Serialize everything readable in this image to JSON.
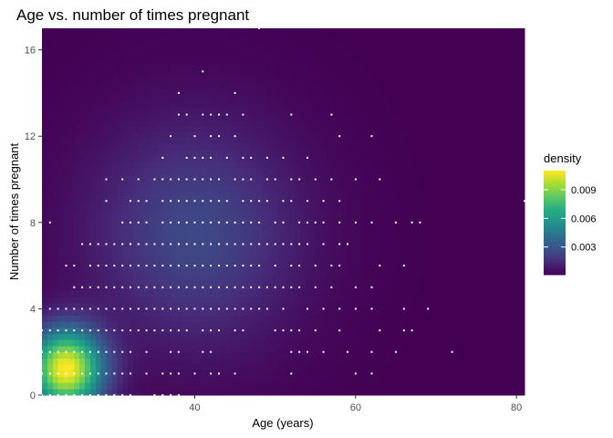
{
  "chart_data": {
    "type": "heatmap",
    "title": "Age vs. number of times pregnant",
    "xlabel": "Age (years)",
    "ylabel": "Number of times pregnant",
    "xlim": [
      21,
      81
    ],
    "ylim": [
      0,
      17
    ],
    "x_ticks": [
      40,
      60,
      80
    ],
    "y_ticks": [
      0,
      4,
      8,
      12,
      16
    ],
    "colormap": "viridis",
    "density_range": [
      0.0001,
      0.011
    ],
    "legend": {
      "title": "density",
      "placement": "right",
      "ticks": [
        {
          "value": 0.003,
          "label": "0.003"
        },
        {
          "value": 0.006,
          "label": "0.006"
        },
        {
          "value": 0.009,
          "label": "0.009"
        }
      ]
    },
    "density_peaks": [
      {
        "x": 24,
        "y": 1.2,
        "weight": 1.0
      },
      {
        "x": 40,
        "y": 7.5,
        "weight": 0.22
      }
    ],
    "points_color": "#ffffff",
    "points": [
      [
        21,
        0
      ],
      [
        22,
        0
      ],
      [
        23,
        0
      ],
      [
        24,
        0
      ],
      [
        25,
        0
      ],
      [
        26,
        0
      ],
      [
        27,
        0
      ],
      [
        28,
        0
      ],
      [
        29,
        0
      ],
      [
        30,
        0
      ],
      [
        31,
        0
      ],
      [
        32,
        0
      ],
      [
        35,
        0
      ],
      [
        36,
        0
      ],
      [
        37,
        0
      ],
      [
        38,
        0
      ],
      [
        21,
        1
      ],
      [
        22,
        1
      ],
      [
        23,
        1
      ],
      [
        24,
        1
      ],
      [
        25,
        1
      ],
      [
        26,
        1
      ],
      [
        27,
        1
      ],
      [
        28,
        1
      ],
      [
        29,
        1
      ],
      [
        30,
        1
      ],
      [
        31,
        1
      ],
      [
        32,
        1
      ],
      [
        34,
        1
      ],
      [
        36,
        1
      ],
      [
        37,
        1
      ],
      [
        38,
        1
      ],
      [
        40,
        1
      ],
      [
        42,
        1
      ],
      [
        43,
        1
      ],
      [
        45,
        1
      ],
      [
        52,
        1
      ],
      [
        60,
        1
      ],
      [
        62,
        1
      ],
      [
        21,
        2
      ],
      [
        22,
        2
      ],
      [
        23,
        2
      ],
      [
        24,
        2
      ],
      [
        25,
        2
      ],
      [
        26,
        2
      ],
      [
        27,
        2
      ],
      [
        28,
        2
      ],
      [
        29,
        2
      ],
      [
        30,
        2
      ],
      [
        31,
        2
      ],
      [
        32,
        2
      ],
      [
        34,
        2
      ],
      [
        37,
        2
      ],
      [
        38,
        2
      ],
      [
        41,
        2
      ],
      [
        42,
        2
      ],
      [
        52,
        2
      ],
      [
        53,
        2
      ],
      [
        54,
        2
      ],
      [
        56,
        2
      ],
      [
        59,
        2
      ],
      [
        62,
        2
      ],
      [
        65,
        2
      ],
      [
        72,
        2
      ],
      [
        21,
        3
      ],
      [
        22,
        3
      ],
      [
        23,
        3
      ],
      [
        24,
        3
      ],
      [
        25,
        3
      ],
      [
        26,
        3
      ],
      [
        27,
        3
      ],
      [
        28,
        3
      ],
      [
        29,
        3
      ],
      [
        30,
        3
      ],
      [
        31,
        3
      ],
      [
        32,
        3
      ],
      [
        33,
        3
      ],
      [
        34,
        3
      ],
      [
        35,
        3
      ],
      [
        36,
        3
      ],
      [
        37,
        3
      ],
      [
        38,
        3
      ],
      [
        39,
        3
      ],
      [
        41,
        3
      ],
      [
        42,
        3
      ],
      [
        43,
        3
      ],
      [
        45,
        3
      ],
      [
        46,
        3
      ],
      [
        50,
        3
      ],
      [
        51,
        3
      ],
      [
        52,
        3
      ],
      [
        53,
        3
      ],
      [
        55,
        3
      ],
      [
        58,
        3
      ],
      [
        63,
        3
      ],
      [
        66,
        3
      ],
      [
        67,
        3
      ],
      [
        22,
        4
      ],
      [
        23,
        4
      ],
      [
        24,
        4
      ],
      [
        25,
        4
      ],
      [
        26,
        4
      ],
      [
        27,
        4
      ],
      [
        28,
        4
      ],
      [
        29,
        4
      ],
      [
        30,
        4
      ],
      [
        31,
        4
      ],
      [
        32,
        4
      ],
      [
        33,
        4
      ],
      [
        34,
        4
      ],
      [
        35,
        4
      ],
      [
        36,
        4
      ],
      [
        37,
        4
      ],
      [
        38,
        4
      ],
      [
        39,
        4
      ],
      [
        40,
        4
      ],
      [
        41,
        4
      ],
      [
        42,
        4
      ],
      [
        43,
        4
      ],
      [
        44,
        4
      ],
      [
        45,
        4
      ],
      [
        46,
        4
      ],
      [
        47,
        4
      ],
      [
        48,
        4
      ],
      [
        49,
        4
      ],
      [
        51,
        4
      ],
      [
        54,
        4
      ],
      [
        56,
        4
      ],
      [
        58,
        4
      ],
      [
        60,
        4
      ],
      [
        62,
        4
      ],
      [
        66,
        4
      ],
      [
        69,
        4
      ],
      [
        25,
        5
      ],
      [
        26,
        5
      ],
      [
        27,
        5
      ],
      [
        28,
        5
      ],
      [
        29,
        5
      ],
      [
        30,
        5
      ],
      [
        31,
        5
      ],
      [
        32,
        5
      ],
      [
        33,
        5
      ],
      [
        34,
        5
      ],
      [
        35,
        5
      ],
      [
        36,
        5
      ],
      [
        37,
        5
      ],
      [
        38,
        5
      ],
      [
        39,
        5
      ],
      [
        40,
        5
      ],
      [
        41,
        5
      ],
      [
        42,
        5
      ],
      [
        43,
        5
      ],
      [
        44,
        5
      ],
      [
        45,
        5
      ],
      [
        46,
        5
      ],
      [
        47,
        5
      ],
      [
        48,
        5
      ],
      [
        49,
        5
      ],
      [
        50,
        5
      ],
      [
        51,
        5
      ],
      [
        52,
        5
      ],
      [
        53,
        5
      ],
      [
        55,
        5
      ],
      [
        57,
        5
      ],
      [
        60,
        5
      ],
      [
        62,
        5
      ],
      [
        24,
        6
      ],
      [
        25,
        6
      ],
      [
        27,
        6
      ],
      [
        28,
        6
      ],
      [
        29,
        6
      ],
      [
        30,
        6
      ],
      [
        31,
        6
      ],
      [
        32,
        6
      ],
      [
        33,
        6
      ],
      [
        34,
        6
      ],
      [
        35,
        6
      ],
      [
        36,
        6
      ],
      [
        37,
        6
      ],
      [
        38,
        6
      ],
      [
        39,
        6
      ],
      [
        40,
        6
      ],
      [
        41,
        6
      ],
      [
        42,
        6
      ],
      [
        43,
        6
      ],
      [
        44,
        6
      ],
      [
        45,
        6
      ],
      [
        46,
        6
      ],
      [
        47,
        6
      ],
      [
        48,
        6
      ],
      [
        50,
        6
      ],
      [
        52,
        6
      ],
      [
        53,
        6
      ],
      [
        55,
        6
      ],
      [
        57,
        6
      ],
      [
        58,
        6
      ],
      [
        63,
        6
      ],
      [
        66,
        6
      ],
      [
        26,
        7
      ],
      [
        27,
        7
      ],
      [
        28,
        7
      ],
      [
        29,
        7
      ],
      [
        30,
        7
      ],
      [
        31,
        7
      ],
      [
        32,
        7
      ],
      [
        33,
        7
      ],
      [
        34,
        7
      ],
      [
        35,
        7
      ],
      [
        36,
        7
      ],
      [
        37,
        7
      ],
      [
        38,
        7
      ],
      [
        39,
        7
      ],
      [
        40,
        7
      ],
      [
        41,
        7
      ],
      [
        42,
        7
      ],
      [
        43,
        7
      ],
      [
        44,
        7
      ],
      [
        45,
        7
      ],
      [
        46,
        7
      ],
      [
        47,
        7
      ],
      [
        48,
        7
      ],
      [
        49,
        7
      ],
      [
        50,
        7
      ],
      [
        51,
        7
      ],
      [
        52,
        7
      ],
      [
        53,
        7
      ],
      [
        54,
        7
      ],
      [
        56,
        7
      ],
      [
        58,
        7
      ],
      [
        59,
        7
      ],
      [
        22,
        8
      ],
      [
        31,
        8
      ],
      [
        32,
        8
      ],
      [
        33,
        8
      ],
      [
        34,
        8
      ],
      [
        36,
        8
      ],
      [
        37,
        8
      ],
      [
        38,
        8
      ],
      [
        39,
        8
      ],
      [
        40,
        8
      ],
      [
        41,
        8
      ],
      [
        42,
        8
      ],
      [
        43,
        8
      ],
      [
        44,
        8
      ],
      [
        45,
        8
      ],
      [
        46,
        8
      ],
      [
        47,
        8
      ],
      [
        48,
        8
      ],
      [
        50,
        8
      ],
      [
        51,
        8
      ],
      [
        53,
        8
      ],
      [
        54,
        8
      ],
      [
        55,
        8
      ],
      [
        56,
        8
      ],
      [
        58,
        8
      ],
      [
        60,
        8
      ],
      [
        62,
        8
      ],
      [
        65,
        8
      ],
      [
        67,
        8
      ],
      [
        68,
        8
      ],
      [
        29,
        9
      ],
      [
        32,
        9
      ],
      [
        33,
        9
      ],
      [
        34,
        9
      ],
      [
        36,
        9
      ],
      [
        37,
        9
      ],
      [
        38,
        9
      ],
      [
        39,
        9
      ],
      [
        40,
        9
      ],
      [
        41,
        9
      ],
      [
        42,
        9
      ],
      [
        43,
        9
      ],
      [
        44,
        9
      ],
      [
        46,
        9
      ],
      [
        47,
        9
      ],
      [
        48,
        9
      ],
      [
        49,
        9
      ],
      [
        51,
        9
      ],
      [
        52,
        9
      ],
      [
        54,
        9
      ],
      [
        56,
        9
      ],
      [
        58,
        9
      ],
      [
        81,
        9
      ],
      [
        29,
        10
      ],
      [
        31,
        10
      ],
      [
        33,
        10
      ],
      [
        35,
        10
      ],
      [
        36,
        10
      ],
      [
        37,
        10
      ],
      [
        38,
        10
      ],
      [
        39,
        10
      ],
      [
        40,
        10
      ],
      [
        41,
        10
      ],
      [
        42,
        10
      ],
      [
        43,
        10
      ],
      [
        45,
        10
      ],
      [
        46,
        10
      ],
      [
        47,
        10
      ],
      [
        49,
        10
      ],
      [
        50,
        10
      ],
      [
        52,
        10
      ],
      [
        53,
        10
      ],
      [
        55,
        10
      ],
      [
        57,
        10
      ],
      [
        60,
        10
      ],
      [
        63,
        10
      ],
      [
        36,
        11
      ],
      [
        39,
        11
      ],
      [
        40,
        11
      ],
      [
        41,
        11
      ],
      [
        42,
        11
      ],
      [
        44,
        11
      ],
      [
        46,
        11
      ],
      [
        47,
        11
      ],
      [
        49,
        11
      ],
      [
        51,
        11
      ],
      [
        54,
        11
      ],
      [
        37,
        12
      ],
      [
        40,
        12
      ],
      [
        42,
        12
      ],
      [
        43,
        12
      ],
      [
        45,
        12
      ],
      [
        58,
        12
      ],
      [
        62,
        12
      ],
      [
        38,
        13
      ],
      [
        39,
        13
      ],
      [
        41,
        13
      ],
      [
        42,
        13
      ],
      [
        43,
        13
      ],
      [
        44,
        13
      ],
      [
        46,
        13
      ],
      [
        52,
        13
      ],
      [
        57,
        13
      ],
      [
        38,
        14
      ],
      [
        45,
        14
      ],
      [
        41,
        15
      ],
      [
        48,
        17
      ]
    ]
  }
}
